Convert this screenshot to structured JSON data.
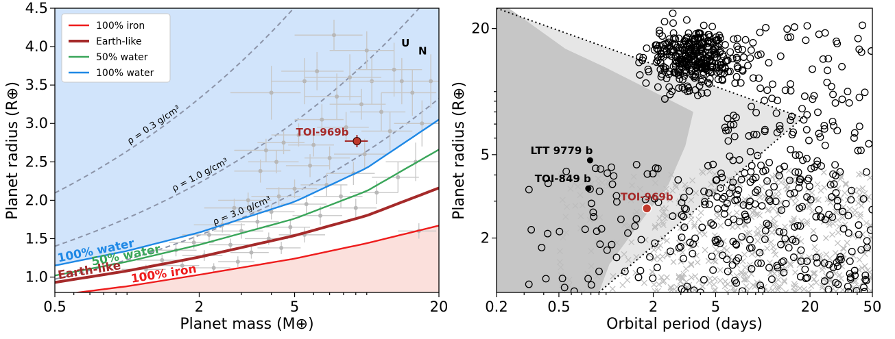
{
  "chart_data": [
    {
      "type": "scatter",
      "xlabel": "Planet mass (M⊕)",
      "ylabel": "Planet radius (R⊕)",
      "xscale": "log",
      "xlim": [
        0.5,
        20
      ],
      "ylim": [
        0.8,
        4.5
      ],
      "xticks": [
        {
          "v": 0.5,
          "label": "0.5"
        },
        {
          "v": 2,
          "label": "2"
        },
        {
          "v": 5,
          "label": "5"
        },
        {
          "v": 20,
          "label": "20"
        }
      ],
      "yticks": [
        {
          "v": 1.0,
          "label": "1.0"
        },
        {
          "v": 1.5,
          "label": "1.5"
        },
        {
          "v": 2.0,
          "label": "2.0"
        },
        {
          "v": 2.5,
          "label": "2.5"
        },
        {
          "v": 3.0,
          "label": "3.0"
        },
        {
          "v": 3.5,
          "label": "3.5"
        },
        {
          "v": 4.0,
          "label": "4.0"
        },
        {
          "v": 4.5,
          "label": "4.5"
        }
      ],
      "legend": {
        "placement": "top-left",
        "entries": [
          {
            "label": "100% iron",
            "color": "#ee1c1c"
          },
          {
            "label": "Earth-like",
            "color": "#a52a2a"
          },
          {
            "label": "50% water",
            "color": "#3aa65a"
          },
          {
            "label": "100% water",
            "color": "#1e88e5"
          }
        ]
      },
      "curves": [
        {
          "name": "100% iron",
          "label": "100% iron",
          "color": "#ee1c1c",
          "x": [
            0.5,
            1,
            2,
            5,
            10,
            20
          ],
          "y": [
            0.76,
            0.88,
            1.03,
            1.24,
            1.44,
            1.67
          ]
        },
        {
          "name": "Earth-like",
          "label": "Earth-like",
          "color": "#a52a2a",
          "x": [
            0.5,
            1,
            2,
            5,
            10,
            20
          ],
          "y": [
            0.93,
            1.08,
            1.26,
            1.54,
            1.8,
            2.16
          ]
        },
        {
          "name": "50% water",
          "label": "50% water",
          "color": "#3aa65a",
          "x": [
            0.5,
            1,
            2,
            5,
            10,
            20
          ],
          "y": [
            1.02,
            1.2,
            1.42,
            1.76,
            2.12,
            2.66
          ]
        },
        {
          "name": "100% water",
          "label": "100% water",
          "color": "#1e88e5",
          "x": [
            0.5,
            1,
            2,
            5,
            10,
            20
          ],
          "y": [
            1.15,
            1.34,
            1.58,
            1.98,
            2.42,
            3.05
          ]
        }
      ],
      "density_curves": [
        {
          "label": "ρ = 0.3 g/cm³",
          "rho": 0.3
        },
        {
          "label": "ρ = 1.0 g/cm³",
          "rho": 1.0
        },
        {
          "label": "ρ = 3.0 g/cm³",
          "rho": 3.0
        }
      ],
      "points": [
        {
          "x": 7.3,
          "y": 4.15,
          "ex": 2.3,
          "ey": 0.2
        },
        {
          "x": 6.2,
          "y": 3.68,
          "ex": 1.8,
          "ey": 0.25
        },
        {
          "x": 5.5,
          "y": 3.55,
          "ex": 1.5,
          "ey": 0.3
        },
        {
          "x": 8.5,
          "y": 3.6,
          "ex": 3.0,
          "ey": 0.3
        },
        {
          "x": 10.5,
          "y": 3.55,
          "ex": 3.5,
          "ey": 0.3
        },
        {
          "x": 13,
          "y": 3.7,
          "ex": 4,
          "ey": 0.35
        },
        {
          "x": 15.5,
          "y": 3.4,
          "ex": 4,
          "ey": 0.3
        },
        {
          "x": 18.5,
          "y": 3.55,
          "ex": 5,
          "ey": 0.35
        },
        {
          "x": 4.0,
          "y": 3.4,
          "ex": 1.3,
          "ey": 0.35
        },
        {
          "x": 7.5,
          "y": 3.35,
          "ex": 2,
          "ey": 0.3
        },
        {
          "x": 9.5,
          "y": 3.25,
          "ex": 2.5,
          "ey": 0.2
        },
        {
          "x": 11.5,
          "y": 3.15,
          "ex": 3,
          "ey": 0.25
        },
        {
          "x": 6.5,
          "y": 3.05,
          "ex": 1.5,
          "ey": 0.2
        },
        {
          "x": 8.2,
          "y": 2.95,
          "ex": 2,
          "ey": 0.2
        },
        {
          "x": 5.2,
          "y": 2.85,
          "ex": 1.2,
          "ey": 0.15
        },
        {
          "x": 6.0,
          "y": 2.72,
          "ex": 1.3,
          "ey": 0.15
        },
        {
          "x": 4.5,
          "y": 2.75,
          "ex": 1,
          "ey": 0.15
        },
        {
          "x": 9.8,
          "y": 2.6,
          "ex": 2.5,
          "ey": 0.2
        },
        {
          "x": 12.5,
          "y": 2.9,
          "ex": 3,
          "ey": 0.25
        },
        {
          "x": 16,
          "y": 2.5,
          "ex": 4,
          "ey": 0.25
        },
        {
          "x": 7.0,
          "y": 2.55,
          "ex": 1.5,
          "ey": 0.15
        },
        {
          "x": 5.8,
          "y": 2.45,
          "ex": 1.2,
          "ey": 0.15
        },
        {
          "x": 4.2,
          "y": 2.5,
          "ex": 1,
          "ey": 0.15
        },
        {
          "x": 8.8,
          "y": 2.35,
          "ex": 2,
          "ey": 0.15
        },
        {
          "x": 3.6,
          "y": 2.38,
          "ex": 0.8,
          "ey": 0.15
        },
        {
          "x": 6.8,
          "y": 2.2,
          "ex": 1.5,
          "ey": 0.15
        },
        {
          "x": 5.0,
          "y": 2.15,
          "ex": 1.2,
          "ey": 0.12
        },
        {
          "x": 4.3,
          "y": 2.05,
          "ex": 1,
          "ey": 0.12
        },
        {
          "x": 7.8,
          "y": 2.05,
          "ex": 1.8,
          "ey": 0.15
        },
        {
          "x": 3.2,
          "y": 2.0,
          "ex": 0.8,
          "ey": 0.1
        },
        {
          "x": 5.6,
          "y": 1.95,
          "ex": 1.2,
          "ey": 0.12
        },
        {
          "x": 2.8,
          "y": 1.9,
          "ex": 0.7,
          "ey": 0.12
        },
        {
          "x": 4.0,
          "y": 1.85,
          "ex": 1,
          "ey": 0.1
        },
        {
          "x": 6.4,
          "y": 1.8,
          "ex": 1.5,
          "ey": 0.12
        },
        {
          "x": 3.5,
          "y": 1.72,
          "ex": 0.8,
          "ey": 0.1
        },
        {
          "x": 2.5,
          "y": 1.68,
          "ex": 0.6,
          "ey": 0.1
        },
        {
          "x": 4.8,
          "y": 1.65,
          "ex": 1,
          "ey": 0.1
        },
        {
          "x": 3.0,
          "y": 1.6,
          "ex": 0.7,
          "ey": 0.1
        },
        {
          "x": 2.2,
          "y": 1.55,
          "ex": 0.5,
          "ey": 0.08
        },
        {
          "x": 5.5,
          "y": 1.55,
          "ex": 1.2,
          "ey": 0.1
        },
        {
          "x": 3.9,
          "y": 1.5,
          "ex": 0.8,
          "ey": 0.08
        },
        {
          "x": 1.9,
          "y": 1.45,
          "ex": 0.4,
          "ey": 0.08
        },
        {
          "x": 2.7,
          "y": 1.42,
          "ex": 0.5,
          "ey": 0.08
        },
        {
          "x": 4.4,
          "y": 1.38,
          "ex": 0.9,
          "ey": 0.08
        },
        {
          "x": 1.6,
          "y": 1.35,
          "ex": 0.35,
          "ey": 0.08
        },
        {
          "x": 3.3,
          "y": 1.32,
          "ex": 0.6,
          "ey": 0.08
        },
        {
          "x": 2.1,
          "y": 1.28,
          "ex": 0.4,
          "ey": 0.07
        },
        {
          "x": 1.4,
          "y": 1.22,
          "ex": 0.3,
          "ey": 0.07
        },
        {
          "x": 2.9,
          "y": 1.2,
          "ex": 0.5,
          "ey": 0.07
        },
        {
          "x": 1.7,
          "y": 1.15,
          "ex": 0.3,
          "ey": 0.06
        },
        {
          "x": 1.2,
          "y": 1.1,
          "ex": 0.25,
          "ey": 0.06
        },
        {
          "x": 2.3,
          "y": 1.12,
          "ex": 0.4,
          "ey": 0.06
        },
        {
          "x": 16.5,
          "y": 1.6,
          "ex": 3,
          "ey": 0.1
        },
        {
          "x": 9.0,
          "y": 1.9,
          "ex": 2,
          "ey": 0.12
        },
        {
          "x": 11,
          "y": 2.1,
          "ex": 2.5,
          "ey": 0.15
        },
        {
          "x": 13.5,
          "y": 2.3,
          "ex": 3,
          "ey": 0.2
        },
        {
          "x": 3.8,
          "y": 2.65,
          "ex": 1,
          "ey": 0.15
        },
        {
          "x": 14,
          "y": 3.55,
          "ex": 4,
          "ey": 0.3
        },
        {
          "x": 17,
          "y": 3.0,
          "ex": 4,
          "ey": 0.3
        },
        {
          "x": 10,
          "y": 3.95,
          "ex": 3,
          "ey": 0.25
        }
      ],
      "highlight": {
        "label": "TOI-969b",
        "x": 9.1,
        "y": 2.77,
        "ex": 1.0,
        "ey": 0.08,
        "color": "#a52a2a"
      },
      "solar_system": [
        {
          "label": "U",
          "x": 14.5,
          "y": 4.0
        },
        {
          "label": "N",
          "x": 17.1,
          "y": 3.9
        }
      ]
    },
    {
      "type": "scatter",
      "xlabel": "Orbital period (days)",
      "ylabel": "Planet radius (R⊕)",
      "xscale": "log",
      "yscale": "log",
      "xlim": [
        0.2,
        50
      ],
      "ylim": [
        1.1,
        25
      ],
      "xticks": [
        {
          "v": 0.2,
          "label": "0.2"
        },
        {
          "v": 0.5,
          "label": "0.5"
        },
        {
          "v": 2,
          "label": "2"
        },
        {
          "v": 5,
          "label": "5"
        },
        {
          "v": 20,
          "label": "20"
        },
        {
          "v": 50,
          "label": "50"
        }
      ],
      "yticks": [
        {
          "v": 2,
          "label": "2"
        },
        {
          "v": 5,
          "label": "5"
        },
        {
          "v": 20,
          "label": "20"
        }
      ],
      "desert_boundaries": [
        {
          "name": "upper",
          "x": [
            0.2,
            18
          ],
          "y": [
            25,
            7.5
          ]
        },
        {
          "name": "lower",
          "x": [
            0.9,
            18
          ],
          "y": [
            1.1,
            7.5
          ]
        }
      ],
      "labeled_planets": [
        {
          "label": "LTT 9779 b",
          "x": 0.79,
          "y": 4.7,
          "color": "#000000"
        },
        {
          "label": "TOI-849 b",
          "x": 0.77,
          "y": 3.45,
          "color": "#000000"
        },
        {
          "label": "TOI-969b",
          "x": 1.82,
          "y": 2.77,
          "color": "#a52a2a"
        }
      ]
    }
  ]
}
